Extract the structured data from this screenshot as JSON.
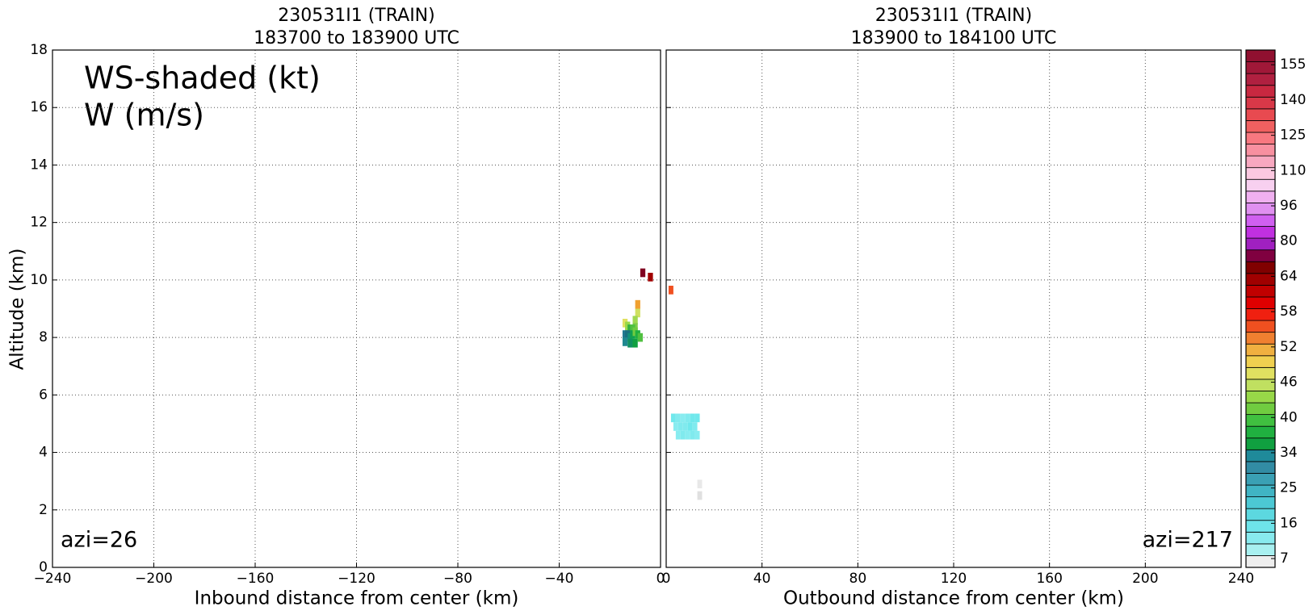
{
  "chart_data": [
    {
      "type": "heatmap",
      "title": "230531I1 (TRAIN)",
      "subtitle": "183700 to 183900 UTC",
      "xlabel": "Inbound distance from center (km)",
      "ylabel": "Altitude (km)",
      "annotation": "azi=26",
      "xlim": [
        -240,
        0
      ],
      "xticks": [
        {
          "value": -240,
          "label": "−240"
        },
        {
          "value": -200,
          "label": "−200"
        },
        {
          "value": -160,
          "label": "−160"
        },
        {
          "value": -120,
          "label": "−120"
        },
        {
          "value": -80,
          "label": "−80"
        },
        {
          "value": -40,
          "label": "−40"
        },
        0
      ],
      "ylim": [
        0,
        18
      ],
      "yticks": [
        0,
        2,
        4,
        6,
        8,
        10,
        12,
        14,
        16,
        18
      ],
      "grid": true,
      "cells": {
        "x": [
          -7,
          -4,
          -9,
          -9,
          -10,
          -10,
          -14,
          -13,
          -12,
          -11,
          -14,
          -13,
          -12,
          -11,
          -10,
          -9,
          -8,
          -14,
          -12,
          -10
        ],
        "y": [
          10.25,
          10.1,
          9.15,
          8.85,
          8.6,
          8.35,
          8.5,
          8.4,
          8.3,
          8.3,
          8.1,
          8.1,
          8.0,
          8.1,
          8.2,
          8.1,
          8.0,
          7.85,
          7.8,
          7.8
        ],
        "values": [
          64,
          60,
          48,
          43,
          41,
          39,
          45,
          40,
          36,
          37,
          28,
          27,
          30,
          33,
          38,
          35,
          37,
          29,
          31,
          34
        ],
        "colors": [
          "#800020",
          "#a00000",
          "#f0a030",
          "#d0e060",
          "#a0d850",
          "#80cc48",
          "#e0e060",
          "#98d848",
          "#30b040",
          "#50c040",
          "#207890",
          "#1a7080",
          "#10907a",
          "#10a050",
          "#70cc40",
          "#20b040",
          "#50c040",
          "#208890",
          "#109060",
          "#10a040"
        ]
      }
    },
    {
      "type": "heatmap",
      "title": "230531I1 (TRAIN)",
      "subtitle": "183900 to 184100 UTC",
      "xlabel": "Outbound distance from center (km)",
      "annotation": "azi=217",
      "xlim": [
        0,
        240
      ],
      "xticks": [
        0,
        40,
        80,
        120,
        160,
        200,
        240
      ],
      "ylim": [
        0,
        18
      ],
      "yticks": [
        0,
        2,
        4,
        6,
        8,
        10,
        12,
        14,
        16,
        18
      ],
      "grid": true,
      "cells": {
        "x": [
          2,
          3,
          5,
          7,
          9,
          11,
          13,
          4,
          6,
          8,
          10,
          12,
          5,
          7,
          9,
          11,
          13,
          14,
          14
        ],
        "y": [
          9.65,
          5.2,
          5.2,
          5.2,
          5.2,
          5.2,
          5.2,
          4.9,
          4.9,
          4.9,
          4.9,
          4.9,
          4.6,
          4.6,
          4.6,
          4.6,
          4.6,
          2.9,
          2.5
        ],
        "values": [
          53,
          19,
          18,
          17,
          18,
          19,
          19,
          17,
          18,
          18,
          19,
          18,
          17,
          18,
          17,
          18,
          17,
          7,
          8
        ],
        "colors": [
          "#f05020",
          "#70e8ec",
          "#80eaee",
          "#88ecf0",
          "#80eaee",
          "#70e8ec",
          "#70e8ec",
          "#88ecf0",
          "#80eaee",
          "#80eaee",
          "#70e8ec",
          "#80eaee",
          "#88ecf0",
          "#80eaee",
          "#88ecf0",
          "#80eaee",
          "#88ecf0",
          "#e8e8e8",
          "#e0e0e0"
        ]
      }
    }
  ],
  "annotation": [
    "WS-shaded (kt)",
    "W (m/s)"
  ],
  "colorbar": {
    "ticks": [
      7,
      16,
      25,
      34,
      40,
      46,
      52,
      58,
      64,
      80,
      96,
      110,
      125,
      140,
      155
    ],
    "colors": [
      "#eeeeee",
      "#a8f0f0",
      "#88eaee",
      "#6ee4ea",
      "#5cd8e0",
      "#4cc8d4",
      "#40b4c4",
      "#3aa0b4",
      "#328ca4",
      "#1f8a9a",
      "#10a040",
      "#20b040",
      "#40c040",
      "#70cc40",
      "#98d848",
      "#c0e060",
      "#e0e060",
      "#f0d050",
      "#f0b040",
      "#f08030",
      "#f05020",
      "#f02010",
      "#e00000",
      "#c00000",
      "#a00000",
      "#800000",
      "#800040",
      "#a020c0",
      "#c030e0",
      "#d060f0",
      "#e090f0",
      "#f0b0f0",
      "#f8d0f0",
      "#fbc8e0",
      "#f8a8c0",
      "#f890a0",
      "#f87880",
      "#f06060",
      "#e84a50",
      "#d83848",
      "#c82840",
      "#b02040",
      "#a01838",
      "#901030"
    ]
  }
}
